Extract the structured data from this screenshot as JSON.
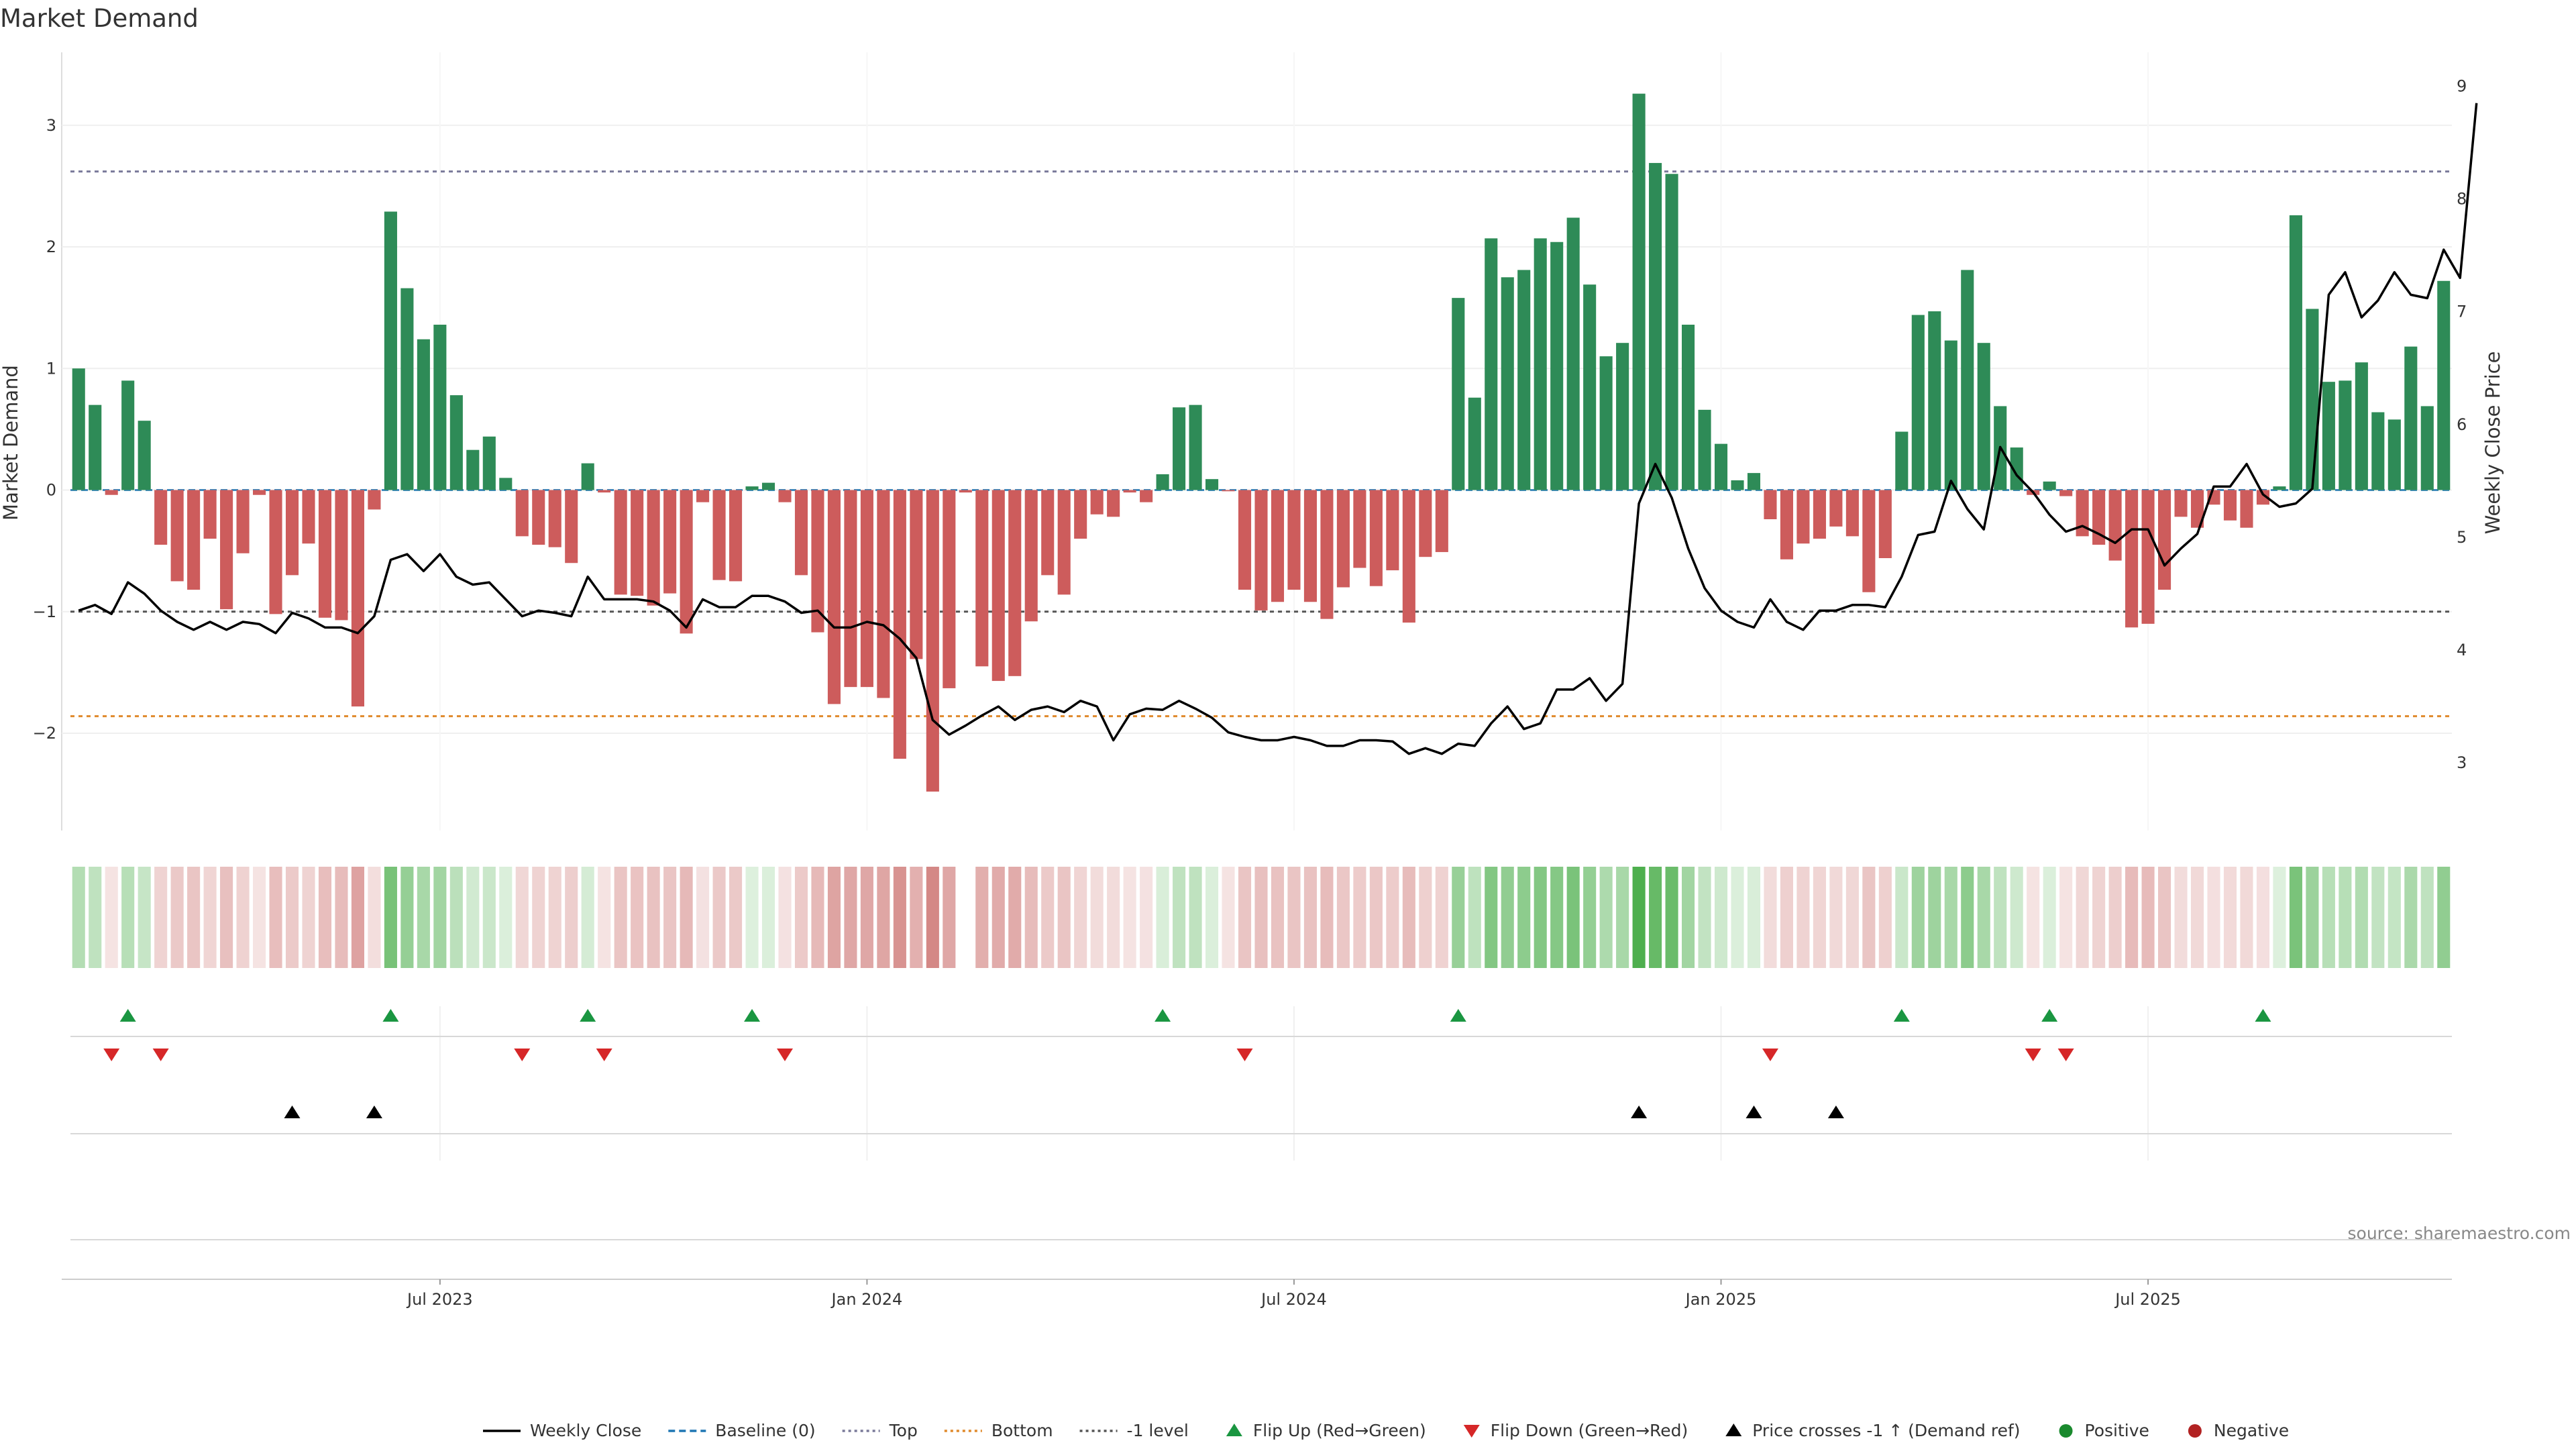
{
  "chart_data": {
    "type": "bar",
    "title": "Market Demand",
    "ylabel": "Market Demand",
    "ylabel_right": "Weekly Close Price",
    "ylim": [
      -2.8,
      3.6
    ],
    "ylim_right": [
      2.4,
      9.3
    ],
    "y_ticks": [
      {
        "v": 3,
        "label": "3"
      },
      {
        "v": 2,
        "label": "2"
      },
      {
        "v": 1,
        "label": "1"
      },
      {
        "v": 0,
        "label": "0"
      },
      {
        "v": -1,
        "label": "−1"
      },
      {
        "v": -2,
        "label": "−2"
      }
    ],
    "y_right_ticks": [
      {
        "v": 9,
        "label": "9"
      },
      {
        "v": 8,
        "label": "8"
      },
      {
        "v": 7,
        "label": "7"
      },
      {
        "v": 6,
        "label": "6"
      },
      {
        "v": 5,
        "label": "5"
      },
      {
        "v": 4,
        "label": "4"
      },
      {
        "v": 3,
        "label": "3"
      }
    ],
    "x_ticks": [
      {
        "i": 22,
        "label": "Jul 2023"
      },
      {
        "i": 48,
        "label": "Jan 2024"
      },
      {
        "i": 74,
        "label": "Jul 2024"
      },
      {
        "i": 100,
        "label": "Jan 2025"
      },
      {
        "i": 126,
        "label": "Jul 2025"
      }
    ],
    "reference_lines": [
      {
        "name": "Top",
        "value": 2.62,
        "color": "#7a7a9a",
        "dash": "6,6"
      },
      {
        "name": "Bottom",
        "value": -1.86,
        "color": "#e08a2c",
        "dash": "6,6"
      },
      {
        "name": "-1 level",
        "value": -1.0,
        "color": "#555555",
        "dash": "6,6"
      }
    ],
    "demand": [
      1.0,
      0.7,
      -0.04,
      0.9,
      0.57,
      -0.45,
      -0.75,
      -0.82,
      -0.4,
      -0.98,
      -0.52,
      -0.04,
      -1.02,
      -0.7,
      -0.44,
      -1.05,
      -1.07,
      -1.78,
      -0.16,
      2.29,
      1.66,
      1.24,
      1.36,
      0.78,
      0.33,
      0.44,
      0.1,
      -0.38,
      -0.45,
      -0.47,
      -0.6,
      0.22,
      -0.02,
      -0.86,
      -0.87,
      -0.95,
      -0.85,
      -1.18,
      -0.1,
      -0.74,
      -0.75,
      0.03,
      0.06,
      -0.1,
      -0.7,
      -1.17,
      -1.76,
      -1.62,
      -1.62,
      -1.71,
      -2.21,
      -1.39,
      -2.48,
      -1.63,
      -0.02,
      -1.45,
      -1.57,
      -1.53,
      -1.08,
      -0.7,
      -0.86,
      -0.4,
      -0.2,
      -0.22,
      -0.02,
      -0.1,
      0.13,
      0.68,
      0.7,
      0.09,
      -0.01,
      -0.82,
      -0.99,
      -0.92,
      -0.82,
      -0.92,
      -1.06,
      -0.8,
      -0.64,
      -0.79,
      -0.66,
      -1.09,
      -0.55,
      -0.51,
      1.58,
      0.76,
      2.07,
      1.75,
      1.81,
      2.07,
      2.04,
      2.24,
      1.69,
      1.1,
      1.21,
      3.26,
      2.69,
      2.6,
      1.36,
      0.66,
      0.38,
      0.08,
      0.14,
      -0.24,
      -0.57,
      -0.44,
      -0.4,
      -0.3,
      -0.38,
      -0.84,
      -0.56,
      0.48,
      1.44,
      1.47,
      1.23,
      1.81,
      1.21,
      0.69,
      0.35,
      -0.04,
      0.07,
      -0.05,
      -0.38,
      -0.45,
      -0.58,
      -1.13,
      -1.1,
      -0.82,
      -0.22,
      -0.31,
      -0.12,
      -0.25,
      -0.31,
      -0.12,
      0.03,
      2.26,
      1.49,
      0.89,
      0.9,
      1.05,
      0.64,
      0.58,
      1.18,
      0.69,
      1.72
    ],
    "series": [
      {
        "name": "Weekly Close",
        "values": [
          4.35,
          4.4,
          4.32,
          4.6,
          4.5,
          4.35,
          4.25,
          4.18,
          4.25,
          4.18,
          4.25,
          4.23,
          4.15,
          4.33,
          4.28,
          4.2,
          4.2,
          4.15,
          4.3,
          4.8,
          4.85,
          4.7,
          4.85,
          4.65,
          4.58,
          4.6,
          4.45,
          4.3,
          4.35,
          4.33,
          4.3,
          4.65,
          4.45,
          4.45,
          4.45,
          4.43,
          4.35,
          4.2,
          4.45,
          4.38,
          4.38,
          4.48,
          4.48,
          4.43,
          4.33,
          4.35,
          4.2,
          4.2,
          4.25,
          4.22,
          4.1,
          3.93,
          3.38,
          3.25,
          3.33,
          3.42,
          3.5,
          3.38,
          3.47,
          3.5,
          3.45,
          3.55,
          3.5,
          3.2,
          3.43,
          3.48,
          3.47,
          3.55,
          3.48,
          3.4,
          3.27,
          3.23,
          3.2,
          3.2,
          3.23,
          3.2,
          3.15,
          3.15,
          3.2,
          3.2,
          3.19,
          3.08,
          3.13,
          3.08,
          3.17,
          3.15,
          3.35,
          3.5,
          3.3,
          3.35,
          3.65,
          3.65,
          3.75,
          3.55,
          3.7,
          5.3,
          5.65,
          5.35,
          4.9,
          4.55,
          4.35,
          4.25,
          4.2,
          4.45,
          4.25,
          4.18,
          4.35,
          4.35,
          4.4,
          4.4,
          4.38,
          4.65,
          5.02,
          5.05,
          5.5,
          5.25,
          5.07,
          5.8,
          5.55,
          5.4,
          5.2,
          5.05,
          5.1,
          5.03,
          4.95,
          5.07,
          5.07,
          4.75,
          4.9,
          5.03,
          5.45,
          5.45,
          5.65,
          5.38,
          5.27,
          5.3,
          5.43,
          7.15,
          7.35,
          6.95,
          7.1,
          7.35,
          7.15,
          7.12,
          7.55,
          7.3,
          8.85
        ]
      },
      {
        "name": "Baseline (0)",
        "value": 0
      }
    ],
    "heat_row_gap_index": 54,
    "flip_up": [
      3,
      19,
      31,
      41,
      66,
      84,
      111,
      120,
      133
    ],
    "flip_down": [
      2,
      5,
      27,
      32,
      43,
      71,
      103,
      119,
      121
    ],
    "price_cross": [
      13,
      18,
      95,
      102,
      107
    ],
    "legend": [
      {
        "label": "Weekly Close",
        "kind": "line",
        "color": "#000000",
        "dash": ""
      },
      {
        "label": "Baseline (0)",
        "kind": "line",
        "color": "#1f77b4",
        "dash": "10,6"
      },
      {
        "label": "Top",
        "kind": "line",
        "color": "#7a7a9a",
        "dash": "4,5"
      },
      {
        "label": "Bottom",
        "kind": "line",
        "color": "#e08a2c",
        "dash": "4,5"
      },
      {
        "label": "-1 level",
        "kind": "line",
        "color": "#555555",
        "dash": "4,5"
      },
      {
        "label": "Flip Up (Red→Green)",
        "kind": "tri-up",
        "color": "#1a9641"
      },
      {
        "label": "Flip Down (Green→Red)",
        "kind": "tri-down",
        "color": "#d62728"
      },
      {
        "label": "Price crosses -1 ↑ (Demand ref)",
        "kind": "tri-up",
        "color": "#000000"
      },
      {
        "label": "Positive",
        "kind": "dot",
        "color": "#1a8a2e"
      },
      {
        "label": "Negative",
        "kind": "dot",
        "color": "#b22222"
      }
    ],
    "colors": {
      "positive_bar": "#2e8b57",
      "negative_bar": "#cd5c5c",
      "heat_positive": "#2ca02c",
      "heat_negative": "#c0504d",
      "flip_up": "#1a9641",
      "flip_down": "#d62728",
      "price_line": "#000000"
    },
    "source": "source: sharemaestro.com"
  }
}
